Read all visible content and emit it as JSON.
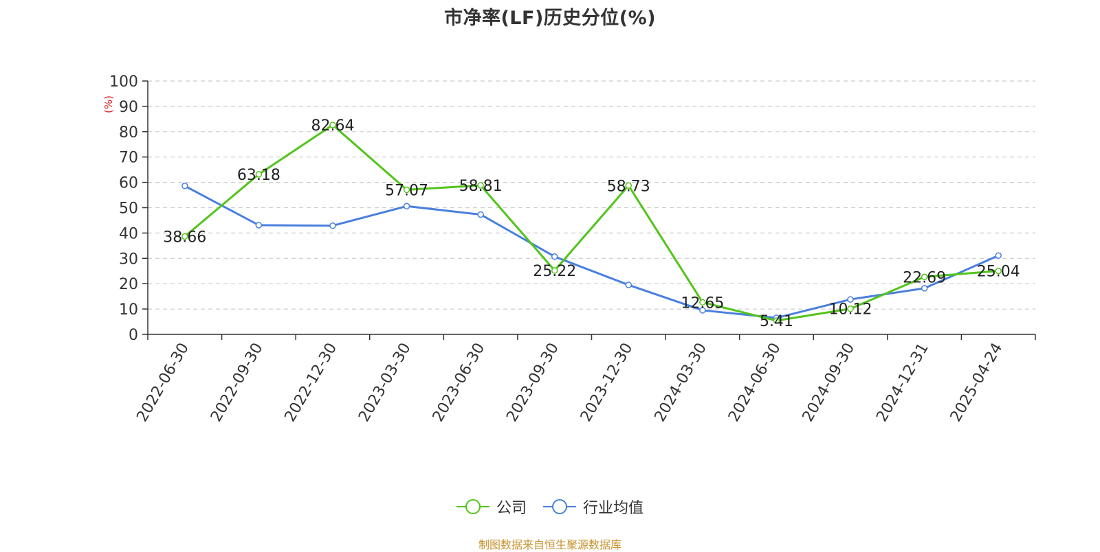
{
  "chart_data": {
    "type": "line",
    "title": "市净率(LF)历史分位(%)",
    "ylabel": "(%)",
    "xlabel": "",
    "ylim": [
      0,
      100
    ],
    "yticks": [
      0,
      10,
      20,
      30,
      40,
      50,
      60,
      70,
      80,
      90,
      100
    ],
    "grid": true,
    "legend_position": "bottom",
    "categories": [
      "2022-06-30",
      "2022-09-30",
      "2022-12-30",
      "2023-03-30",
      "2023-06-30",
      "2023-09-30",
      "2023-12-30",
      "2024-03-30",
      "2024-06-30",
      "2024-09-30",
      "2024-12-31",
      "2025-04-24"
    ],
    "series": [
      {
        "name": "公司",
        "color": "#52c41a",
        "values": [
          38.66,
          63.18,
          82.64,
          57.07,
          58.81,
          25.22,
          58.73,
          12.65,
          5.41,
          10.12,
          22.69,
          25.04
        ],
        "labels_shown": true
      },
      {
        "name": "行业均值",
        "color": "#4a7fdf",
        "values": [
          58.6,
          43.1,
          42.9,
          50.6,
          47.3,
          30.7,
          19.5,
          9.5,
          6.5,
          13.8,
          18.2,
          31.1
        ],
        "labels_shown": false
      }
    ]
  },
  "footer": {
    "source": "制图数据来自恒生聚源数据库"
  }
}
